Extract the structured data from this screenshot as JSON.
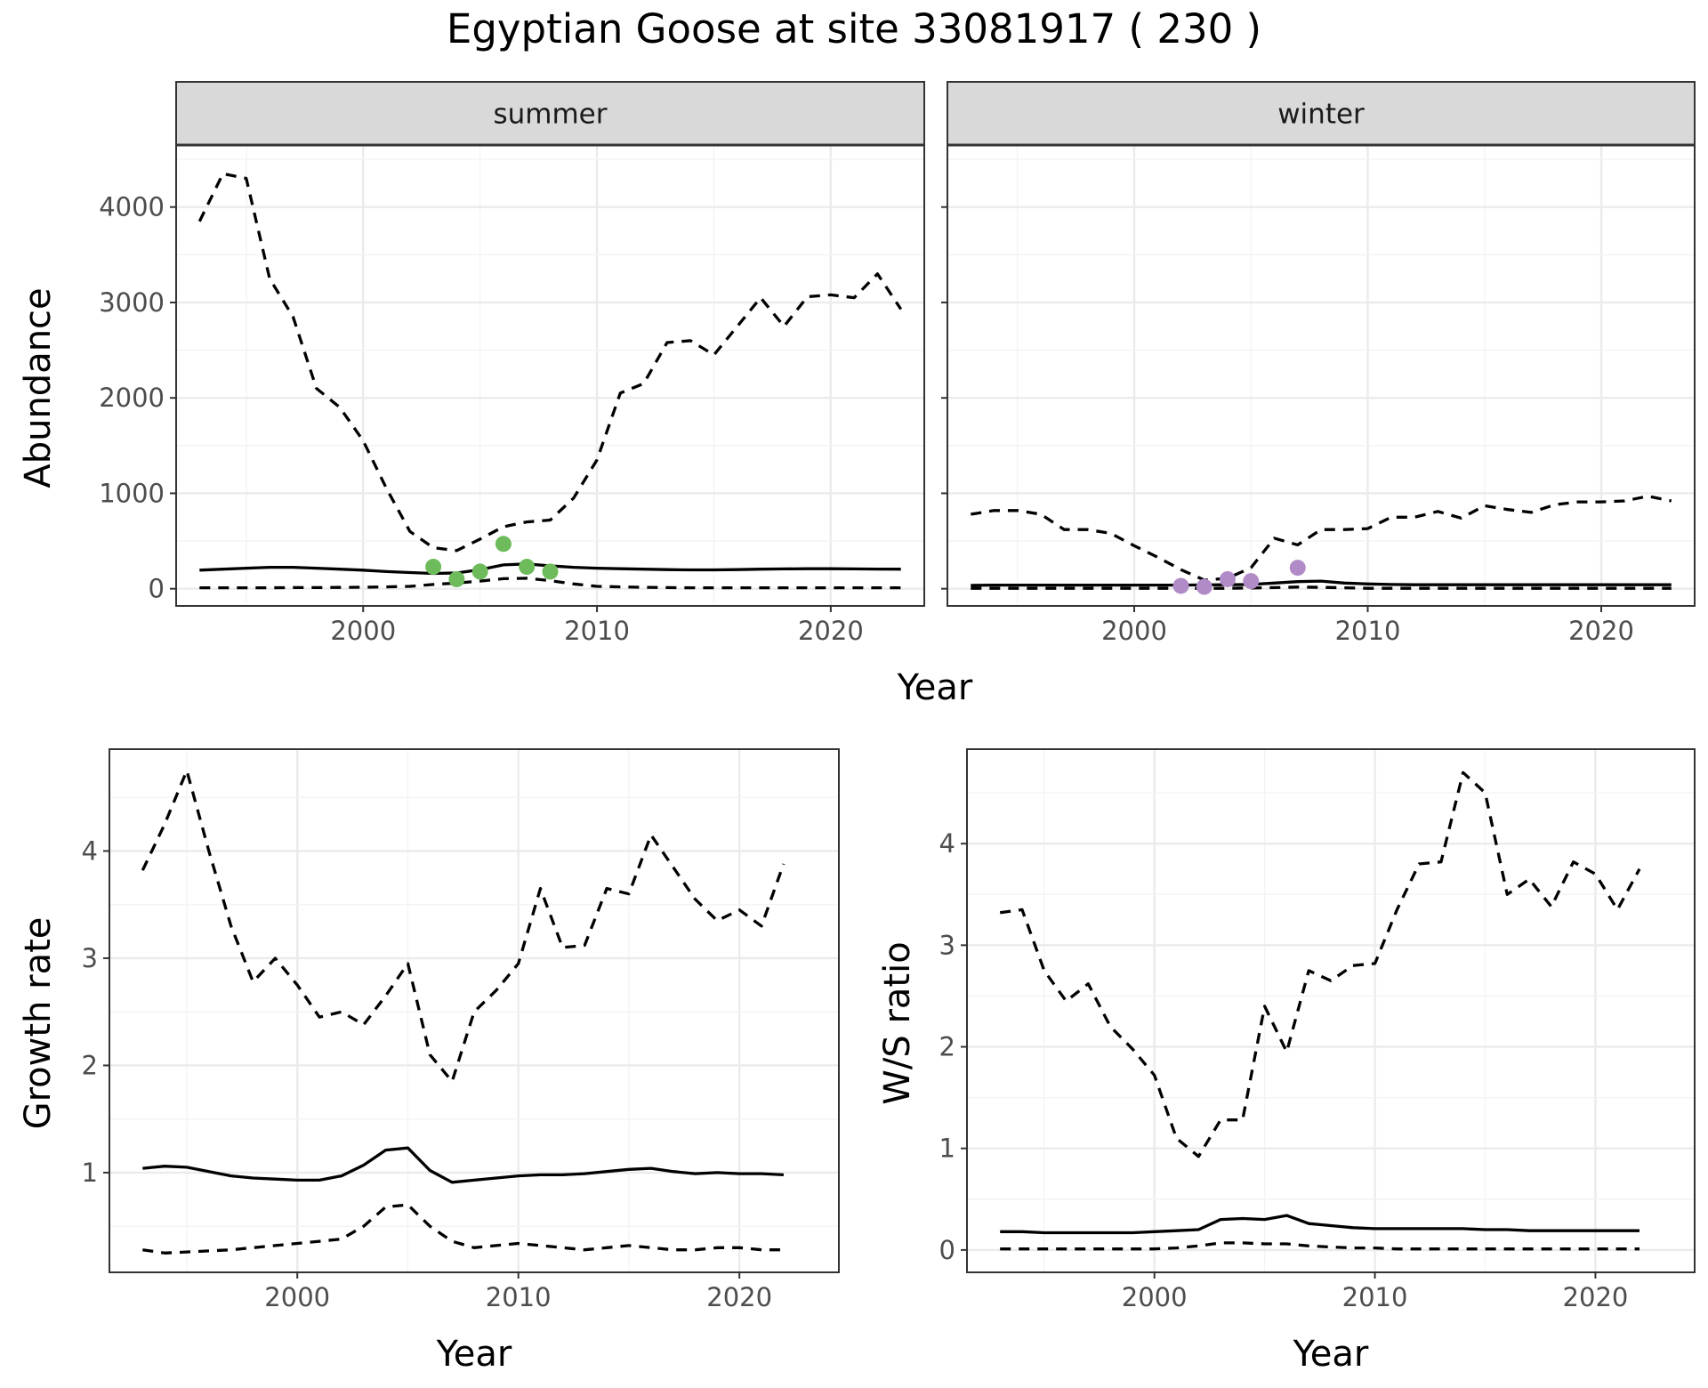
{
  "figure_title": "Egyptian Goose at site 33081917 ( 230 )",
  "colors": {
    "summer_points": "#6dbb5b",
    "winter_points": "#b18bc7",
    "line": "#000000"
  },
  "chart_data": [
    {
      "id": "abundance-summer",
      "type": "line",
      "facet_label": "summer",
      "xlabel": "Year",
      "ylabel": "Abundance",
      "xlim": [
        1992,
        2024
      ],
      "ylim": [
        -180,
        4650
      ],
      "xticks": [
        2000,
        2010,
        2020
      ],
      "yticks": [
        0,
        1000,
        2000,
        3000,
        4000
      ],
      "x": [
        1993,
        1994,
        1995,
        1996,
        1997,
        1998,
        1999,
        2000,
        2001,
        2002,
        2003,
        2004,
        2005,
        2006,
        2007,
        2008,
        2009,
        2010,
        2011,
        2012,
        2013,
        2014,
        2015,
        2016,
        2017,
        2018,
        2019,
        2020,
        2021,
        2022,
        2023
      ],
      "series": [
        {
          "role": "upper",
          "style": "dashed",
          "values": [
            3850,
            4350,
            4300,
            3250,
            2850,
            2100,
            1900,
            1550,
            1050,
            600,
            430,
            400,
            520,
            650,
            700,
            720,
            950,
            1350,
            2050,
            2150,
            2580,
            2600,
            2450,
            2750,
            3050,
            2750,
            3060,
            3080,
            3050,
            3300,
            2930
          ]
        },
        {
          "role": "mean",
          "style": "solid",
          "values": [
            195,
            205,
            215,
            225,
            225,
            215,
            205,
            195,
            180,
            170,
            160,
            165,
            200,
            250,
            260,
            240,
            225,
            215,
            210,
            205,
            200,
            198,
            198,
            200,
            205,
            208,
            210,
            210,
            208,
            206,
            205
          ]
        },
        {
          "role": "lower",
          "style": "dashed",
          "values": [
            10,
            10,
            10,
            10,
            12,
            12,
            14,
            16,
            20,
            25,
            45,
            60,
            80,
            105,
            110,
            85,
            50,
            25,
            20,
            15,
            12,
            10,
            10,
            10,
            10,
            10,
            10,
            10,
            10,
            10,
            10
          ]
        }
      ],
      "points": {
        "x": [
          2003,
          2004,
          2005,
          2006,
          2007,
          2008
        ],
        "y": [
          230,
          100,
          180,
          470,
          230,
          180
        ]
      }
    },
    {
      "id": "abundance-winter",
      "type": "line",
      "facet_label": "winter",
      "xlabel": "Year",
      "ylabel": "",
      "xlim": [
        1992,
        2024
      ],
      "ylim": [
        -180,
        4650
      ],
      "xticks": [
        2000,
        2010,
        2020
      ],
      "yticks": [
        0,
        1000,
        2000,
        3000,
        4000
      ],
      "x": [
        1993,
        1994,
        1995,
        1996,
        1997,
        1998,
        1999,
        2000,
        2001,
        2002,
        2003,
        2004,
        2005,
        2006,
        2007,
        2008,
        2009,
        2010,
        2011,
        2012,
        2013,
        2014,
        2015,
        2016,
        2017,
        2018,
        2019,
        2020,
        2021,
        2022,
        2023
      ],
      "series": [
        {
          "role": "upper",
          "style": "dashed",
          "values": [
            780,
            820,
            820,
            780,
            620,
            620,
            580,
            450,
            330,
            200,
            90,
            110,
            220,
            530,
            460,
            620,
            620,
            630,
            750,
            750,
            810,
            740,
            870,
            830,
            800,
            880,
            910,
            910,
            920,
            970,
            920
          ]
        },
        {
          "role": "mean",
          "style": "solid",
          "values": [
            35,
            38,
            38,
            38,
            38,
            38,
            38,
            38,
            38,
            38,
            40,
            42,
            45,
            60,
            75,
            80,
            60,
            50,
            45,
            42,
            42,
            42,
            42,
            42,
            42,
            42,
            42,
            42,
            42,
            42,
            42
          ]
        },
        {
          "role": "lower",
          "style": "dashed",
          "values": [
            5,
            5,
            5,
            5,
            5,
            5,
            5,
            5,
            5,
            5,
            5,
            5,
            8,
            12,
            18,
            15,
            10,
            5,
            5,
            5,
            5,
            5,
            5,
            5,
            5,
            5,
            5,
            5,
            5,
            5,
            5
          ]
        }
      ],
      "points": {
        "x": [
          2002,
          2003,
          2004,
          2005,
          2007
        ],
        "y": [
          30,
          20,
          100,
          80,
          220
        ]
      }
    },
    {
      "id": "growth-rate",
      "type": "line",
      "xlabel": "Year",
      "ylabel": "Growth rate",
      "xlim": [
        1991.5,
        2024.5
      ],
      "ylim": [
        0.07,
        4.95
      ],
      "xticks": [
        2000,
        2010,
        2020
      ],
      "yticks": [
        1,
        2,
        3,
        4
      ],
      "x": [
        1993,
        1994,
        1995,
        1996,
        1997,
        1998,
        1999,
        2000,
        2001,
        2002,
        2003,
        2004,
        2005,
        2006,
        2007,
        2008,
        2009,
        2010,
        2011,
        2012,
        2013,
        2014,
        2015,
        2016,
        2017,
        2018,
        2019,
        2020,
        2021,
        2022
      ],
      "series": [
        {
          "role": "upper",
          "style": "dashed",
          "values": [
            3.82,
            4.25,
            4.75,
            4.0,
            3.3,
            2.78,
            3.0,
            2.75,
            2.45,
            2.5,
            2.38,
            2.65,
            2.95,
            2.1,
            1.85,
            2.5,
            2.7,
            2.95,
            3.65,
            3.1,
            3.12,
            3.65,
            3.6,
            4.15,
            3.85,
            3.55,
            3.35,
            3.45,
            3.3,
            3.88
          ]
        },
        {
          "role": "mean",
          "style": "solid",
          "values": [
            1.04,
            1.06,
            1.05,
            1.01,
            0.97,
            0.95,
            0.94,
            0.93,
            0.93,
            0.97,
            1.07,
            1.21,
            1.23,
            1.02,
            0.91,
            0.93,
            0.95,
            0.97,
            0.98,
            0.98,
            0.99,
            1.01,
            1.03,
            1.04,
            1.01,
            0.99,
            1.0,
            0.99,
            0.99,
            0.98
          ]
        },
        {
          "role": "lower",
          "style": "dashed",
          "values": [
            0.28,
            0.25,
            0.26,
            0.27,
            0.28,
            0.3,
            0.32,
            0.34,
            0.36,
            0.38,
            0.5,
            0.68,
            0.7,
            0.5,
            0.36,
            0.3,
            0.32,
            0.34,
            0.32,
            0.3,
            0.28,
            0.3,
            0.32,
            0.3,
            0.28,
            0.28,
            0.3,
            0.3,
            0.28,
            0.28
          ]
        }
      ]
    },
    {
      "id": "ws-ratio",
      "type": "line",
      "xlabel": "Year",
      "ylabel": "W/S ratio",
      "xlim": [
        1991.5,
        2024.5
      ],
      "ylim": [
        -0.22,
        4.93
      ],
      "xticks": [
        2000,
        2010,
        2020
      ],
      "yticks": [
        0,
        1,
        2,
        3,
        4
      ],
      "x": [
        1993,
        1994,
        1995,
        1996,
        1997,
        1998,
        1999,
        2000,
        2001,
        2002,
        2003,
        2004,
        2005,
        2006,
        2007,
        2008,
        2009,
        2010,
        2011,
        2012,
        2013,
        2014,
        2015,
        2016,
        2017,
        2018,
        2019,
        2020,
        2021,
        2022
      ],
      "series": [
        {
          "role": "upper",
          "style": "dashed",
          "values": [
            3.32,
            3.35,
            2.75,
            2.45,
            2.62,
            2.2,
            1.98,
            1.72,
            1.1,
            0.92,
            1.28,
            1.28,
            2.4,
            1.95,
            2.75,
            2.65,
            2.8,
            2.82,
            3.35,
            3.8,
            3.82,
            4.7,
            4.5,
            3.5,
            3.65,
            3.38,
            3.82,
            3.7,
            3.35,
            3.75
          ]
        },
        {
          "role": "mean",
          "style": "solid",
          "values": [
            0.18,
            0.18,
            0.17,
            0.17,
            0.17,
            0.17,
            0.17,
            0.18,
            0.19,
            0.2,
            0.3,
            0.31,
            0.3,
            0.34,
            0.26,
            0.24,
            0.22,
            0.21,
            0.21,
            0.21,
            0.21,
            0.21,
            0.2,
            0.2,
            0.19,
            0.19,
            0.19,
            0.19,
            0.19,
            0.19
          ]
        },
        {
          "role": "lower",
          "style": "dashed",
          "values": [
            0.01,
            0.01,
            0.01,
            0.01,
            0.01,
            0.01,
            0.01,
            0.01,
            0.02,
            0.04,
            0.07,
            0.07,
            0.06,
            0.06,
            0.04,
            0.03,
            0.02,
            0.02,
            0.01,
            0.01,
            0.01,
            0.01,
            0.01,
            0.01,
            0.01,
            0.01,
            0.01,
            0.01,
            0.01,
            0.01
          ]
        }
      ]
    }
  ]
}
